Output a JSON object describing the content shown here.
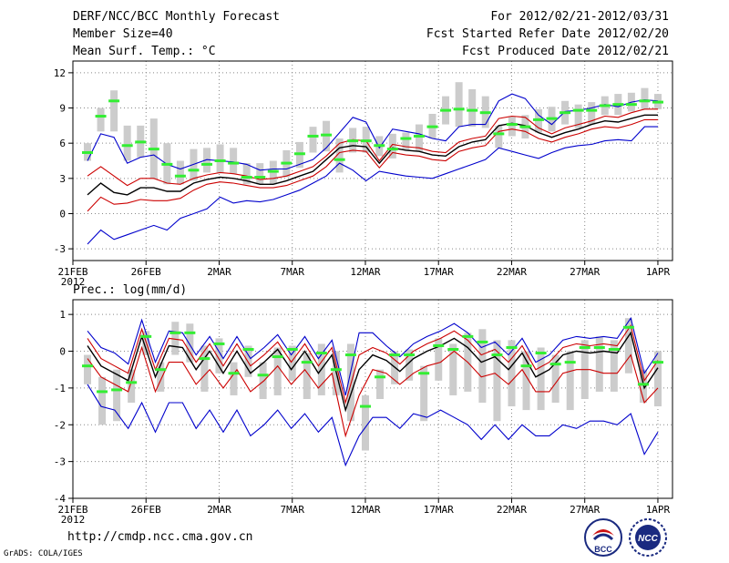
{
  "header": {
    "title": "DERF/NCC/BCC Monthly Forecast",
    "member_size": "Member Size=40",
    "variable": "Mean Surf. Temp.: °C",
    "forecast_period": "For 2012/02/21-2012/03/31",
    "start_refer": "Fcst Started Refer Date 2012/02/20",
    "produced": "Fcst Produced Date 2012/02/21"
  },
  "footer": {
    "url": "http://cmdp.ncc.cma.gov.cn",
    "credit": "GrADS: COLA/IGES",
    "logo_bcc": "BCC",
    "logo_ncc": "NCC"
  },
  "colors": {
    "mean": "#000000",
    "spread": "#cc0000",
    "extreme": "#0000cc",
    "ens_mean_marker": "#33ee33",
    "box": "#cccccc",
    "grid": "#888888"
  },
  "chart_data": [
    {
      "type": "line",
      "title": "Mean Surf. Temp.: °C",
      "xlabel": "",
      "ylabel": "°C",
      "ylim": [
        -4,
        13
      ],
      "yticks": [
        -3,
        0,
        3,
        6,
        9,
        12
      ],
      "xlim": [
        0,
        41
      ],
      "xtick_pos": [
        0,
        5,
        10,
        15,
        20,
        25,
        30,
        35,
        40
      ],
      "xtick_labels": [
        "21FEB",
        "26FEB",
        "2MAR",
        "7MAR",
        "12MAR",
        "17MAR",
        "22MAR",
        "27MAR",
        "1APR"
      ],
      "year_label": "2012",
      "series": [
        {
          "name": "max",
          "color": "blue",
          "values": [
            4.5,
            6.8,
            6.5,
            4.3,
            4.8,
            5.0,
            4.2,
            3.8,
            4.2,
            4.6,
            4.5,
            4.4,
            4.2,
            3.7,
            3.8,
            3.8,
            4.2,
            4.6,
            5.6,
            6.9,
            8.2,
            7.8,
            5.6,
            7.2,
            7.0,
            6.8,
            6.4,
            6.2,
            7.4,
            7.6,
            7.6,
            9.6,
            10.2,
            9.8,
            8.4,
            7.6,
            8.7,
            8.8,
            9.0,
            9.3,
            9.1,
            9.5,
            9.7,
            9.6
          ]
        },
        {
          "name": "upper",
          "color": "red",
          "values": [
            3.2,
            4.0,
            3.2,
            2.4,
            3.0,
            3.0,
            2.6,
            2.5,
            3.0,
            3.3,
            3.5,
            3.4,
            3.2,
            2.9,
            3.0,
            3.2,
            3.6,
            4.0,
            4.9,
            6.0,
            6.3,
            6.2,
            4.5,
            5.9,
            5.7,
            5.6,
            5.3,
            5.2,
            6.1,
            6.4,
            6.6,
            8.1,
            8.3,
            8.2,
            7.3,
            6.8,
            7.3,
            7.6,
            7.9,
            8.3,
            8.2,
            8.6,
            8.9,
            8.9
          ]
        },
        {
          "name": "mean",
          "color": "black",
          "values": [
            1.6,
            2.6,
            1.8,
            1.6,
            2.2,
            2.2,
            1.9,
            1.9,
            2.6,
            2.9,
            3.1,
            3.0,
            2.8,
            2.5,
            2.5,
            2.8,
            3.2,
            3.6,
            4.6,
            5.6,
            5.8,
            5.7,
            4.3,
            5.6,
            5.4,
            5.3,
            5.0,
            4.9,
            5.7,
            6.1,
            6.3,
            7.5,
            7.7,
            7.5,
            6.9,
            6.5,
            6.9,
            7.2,
            7.6,
            7.9,
            7.8,
            8.1,
            8.4,
            8.4
          ]
        },
        {
          "name": "lower",
          "color": "red",
          "values": [
            0.2,
            1.4,
            0.8,
            0.9,
            1.2,
            1.1,
            1.1,
            1.3,
            2.0,
            2.5,
            2.7,
            2.6,
            2.4,
            2.2,
            2.2,
            2.4,
            2.8,
            3.2,
            4.0,
            5.2,
            5.4,
            5.3,
            3.9,
            5.2,
            5.0,
            4.9,
            4.6,
            4.5,
            5.3,
            5.6,
            5.8,
            7.0,
            7.2,
            7.0,
            6.4,
            6.1,
            6.5,
            6.8,
            7.2,
            7.4,
            7.3,
            7.6,
            8.0,
            8.0
          ]
        },
        {
          "name": "min",
          "color": "blue",
          "values": [
            -2.6,
            -1.4,
            -2.2,
            -1.8,
            -1.4,
            -1.0,
            -1.4,
            -0.4,
            0.0,
            0.4,
            1.4,
            0.9,
            1.1,
            1.0,
            1.2,
            1.6,
            2.0,
            2.6,
            3.2,
            4.3,
            3.7,
            2.8,
            3.6,
            3.4,
            3.2,
            3.1,
            3.0,
            3.4,
            3.8,
            4.2,
            4.6,
            5.6,
            5.3,
            5.0,
            4.7,
            5.2,
            5.6,
            5.8,
            5.9,
            6.2,
            6.3,
            6.2,
            7.4,
            7.4
          ]
        },
        {
          "name": "ens_mean_marker",
          "color": "green",
          "values": [
            5.2,
            8.3,
            9.6,
            5.8,
            6.1,
            5.5,
            4.2,
            3.2,
            3.7,
            4.2,
            4.5,
            4.3,
            3.1,
            3.1,
            3.6,
            4.3,
            5.1,
            6.6,
            6.7,
            4.6,
            6.2,
            6.2,
            5.8,
            5.5,
            6.4,
            6.6,
            7.4,
            8.8,
            8.9,
            8.8,
            8.6,
            6.8,
            7.6,
            7.4,
            8.0,
            8.1,
            8.6,
            8.8,
            8.8,
            9.2,
            9.3,
            9.3,
            9.6,
            9.5
          ]
        },
        {
          "name": "box_top",
          "color": "gray",
          "values": [
            6.0,
            9.0,
            10.5,
            7.5,
            7.5,
            8.1,
            6.0,
            4.5,
            5.5,
            5.6,
            5.9,
            5.6,
            4.3,
            4.3,
            4.5,
            5.4,
            6.1,
            7.4,
            7.9,
            6.4,
            7.3,
            7.4,
            6.6,
            6.8,
            6.9,
            7.6,
            8.5,
            10.0,
            11.2,
            10.6,
            10.0,
            7.5,
            8.3,
            8.4,
            8.9,
            9.1,
            9.6,
            9.3,
            9.5,
            10.0,
            10.2,
            10.3,
            10.7,
            10.2
          ]
        },
        {
          "name": "box_bottom",
          "color": "gray",
          "values": [
            4.5,
            7.0,
            7.0,
            4.5,
            4.8,
            3.0,
            2.5,
            2.5,
            2.8,
            3.5,
            3.5,
            3.4,
            2.5,
            2.5,
            2.5,
            3.1,
            3.9,
            5.2,
            5.3,
            3.5,
            5.2,
            5.2,
            4.9,
            4.7,
            5.4,
            5.3,
            6.4,
            7.6,
            7.4,
            7.4,
            7.3,
            5.6,
            6.6,
            6.4,
            6.9,
            7.0,
            7.6,
            7.3,
            7.6,
            8.4,
            8.4,
            8.7,
            8.9,
            8.9
          ]
        }
      ]
    },
    {
      "type": "line",
      "title": "Prec.: log(mm/d)",
      "xlabel": "",
      "ylabel": "log(mm/d)",
      "ylim": [
        -4,
        1.4
      ],
      "yticks": [
        -4,
        -3,
        -2,
        -1,
        0,
        1
      ],
      "xlim": [
        0,
        41
      ],
      "xtick_pos": [
        0,
        5,
        10,
        15,
        20,
        25,
        30,
        35,
        40
      ],
      "xtick_labels": [
        "21FEB",
        "26FEB",
        "2MAR",
        "7MAR",
        "12MAR",
        "17MAR",
        "22MAR",
        "27MAR",
        "1APR"
      ],
      "year_label": "2012",
      "series": [
        {
          "name": "max",
          "color": "blue",
          "values": [
            0.55,
            0.1,
            -0.05,
            -0.35,
            0.85,
            -0.3,
            0.55,
            0.5,
            -0.1,
            0.4,
            -0.2,
            0.4,
            -0.2,
            0.1,
            0.45,
            -0.1,
            0.4,
            -0.2,
            0.3,
            -1.2,
            0.5,
            0.5,
            0.15,
            -0.15,
            0.2,
            0.4,
            0.55,
            0.75,
            0.5,
            0.1,
            0.25,
            -0.1,
            0.35,
            -0.3,
            -0.1,
            0.3,
            0.4,
            0.35,
            0.4,
            0.35,
            0.9,
            -0.6,
            -0.05
          ]
        },
        {
          "name": "upper",
          "color": "red",
          "values": [
            0.35,
            -0.2,
            -0.4,
            -0.6,
            0.6,
            -0.5,
            0.35,
            0.3,
            -0.3,
            0.2,
            -0.4,
            0.2,
            -0.4,
            -0.1,
            0.25,
            -0.3,
            0.2,
            -0.4,
            0.1,
            -1.4,
            -0.1,
            0.1,
            -0.05,
            -0.35,
            0.0,
            0.2,
            0.35,
            0.55,
            0.3,
            -0.1,
            0.05,
            -0.3,
            0.15,
            -0.5,
            -0.3,
            0.1,
            0.2,
            0.15,
            0.2,
            0.15,
            0.7,
            -0.8,
            -0.25
          ]
        },
        {
          "name": "mean",
          "color": "black",
          "values": [
            0.15,
            -0.4,
            -0.6,
            -0.8,
            0.4,
            -0.7,
            0.15,
            0.1,
            -0.5,
            0.0,
            -0.6,
            0.0,
            -0.6,
            -0.3,
            0.05,
            -0.5,
            0.0,
            -0.6,
            -0.1,
            -1.6,
            -0.5,
            -0.1,
            -0.25,
            -0.55,
            -0.2,
            0.0,
            0.15,
            0.35,
            0.1,
            -0.3,
            -0.15,
            -0.5,
            -0.05,
            -0.7,
            -0.5,
            -0.1,
            0.0,
            -0.05,
            0.0,
            -0.05,
            0.5,
            -1.0,
            -0.45
          ]
        },
        {
          "name": "lower",
          "color": "red",
          "values": [
            -0.2,
            -0.7,
            -0.9,
            -1.1,
            0.1,
            -1.1,
            -0.3,
            -0.3,
            -0.9,
            -0.5,
            -1.0,
            -0.5,
            -1.1,
            -0.8,
            -0.4,
            -0.9,
            -0.5,
            -1.0,
            -0.6,
            -2.3,
            -1.2,
            -0.5,
            -0.6,
            -0.9,
            -0.6,
            -0.4,
            -0.3,
            0.0,
            -0.3,
            -0.7,
            -0.6,
            -0.9,
            -0.5,
            -1.1,
            -1.1,
            -0.6,
            -0.5,
            -0.5,
            -0.6,
            -0.6,
            -0.1,
            -1.4,
            -1.0
          ]
        },
        {
          "name": "min",
          "color": "blue",
          "values": [
            -0.9,
            -1.5,
            -1.6,
            -2.1,
            -1.4,
            -2.2,
            -1.4,
            -1.4,
            -2.1,
            -1.6,
            -2.2,
            -1.6,
            -2.3,
            -2.0,
            -1.6,
            -2.1,
            -1.7,
            -2.2,
            -1.8,
            -3.1,
            -2.3,
            -1.8,
            -1.8,
            -2.1,
            -1.7,
            -1.8,
            -1.6,
            -1.8,
            -2.0,
            -2.4,
            -2.0,
            -2.4,
            -2.0,
            -2.3,
            -2.3,
            -2.0,
            -2.1,
            -1.9,
            -1.9,
            -2.0,
            -1.7,
            -2.8,
            -2.2
          ]
        },
        {
          "name": "ens_mean_marker",
          "color": "green",
          "values": [
            -0.4,
            -1.1,
            -1.05,
            -0.85,
            0.4,
            -0.5,
            0.5,
            0.5,
            -0.2,
            0.2,
            -0.6,
            0.05,
            -0.65,
            -0.15,
            0.05,
            -0.3,
            -0.05,
            -0.5,
            -0.1,
            -1.5,
            -0.7,
            -0.1,
            -0.1,
            -0.6,
            0.15,
            0.05,
            0.4,
            0.25,
            -0.1,
            0.1,
            -0.4,
            -0.05,
            -0.35,
            -0.3,
            0.1,
            0.1,
            0.05,
            0.65,
            -0.9,
            -0.3
          ]
        },
        {
          "name": "box_top",
          "color": "gray",
          "values": [
            -0.1,
            -0.7,
            -0.5,
            -0.5,
            0.55,
            -0.3,
            0.8,
            0.75,
            0.15,
            0.35,
            -0.3,
            0.15,
            -0.3,
            0.1,
            0.15,
            -0.05,
            0.2,
            0.0,
            0.2,
            -1.2,
            -0.5,
            0.0,
            0.05,
            -0.4,
            0.35,
            0.2,
            0.5,
            0.6,
            0.3,
            0.3,
            0.0,
            0.1,
            -0.1,
            0.0,
            0.3,
            0.4,
            0.3,
            0.9,
            -0.5,
            0.0
          ]
        },
        {
          "name": "box_bottom",
          "color": "gray",
          "values": [
            -0.9,
            -2.0,
            -1.9,
            -1.4,
            -0.1,
            -1.1,
            -0.1,
            -0.3,
            -1.1,
            -0.6,
            -1.2,
            -0.7,
            -1.3,
            -1.2,
            -0.8,
            -1.3,
            -1.2,
            -1.2,
            -1.9,
            -2.7,
            -1.3,
            -0.9,
            -0.8,
            -1.9,
            -0.8,
            -1.2,
            -1.1,
            -1.4,
            -1.9,
            -1.5,
            -1.6,
            -1.6,
            -1.4,
            -1.6,
            -1.3,
            -1.1,
            -1.1,
            -0.6,
            -1.4,
            -1.5
          ]
        }
      ]
    }
  ]
}
